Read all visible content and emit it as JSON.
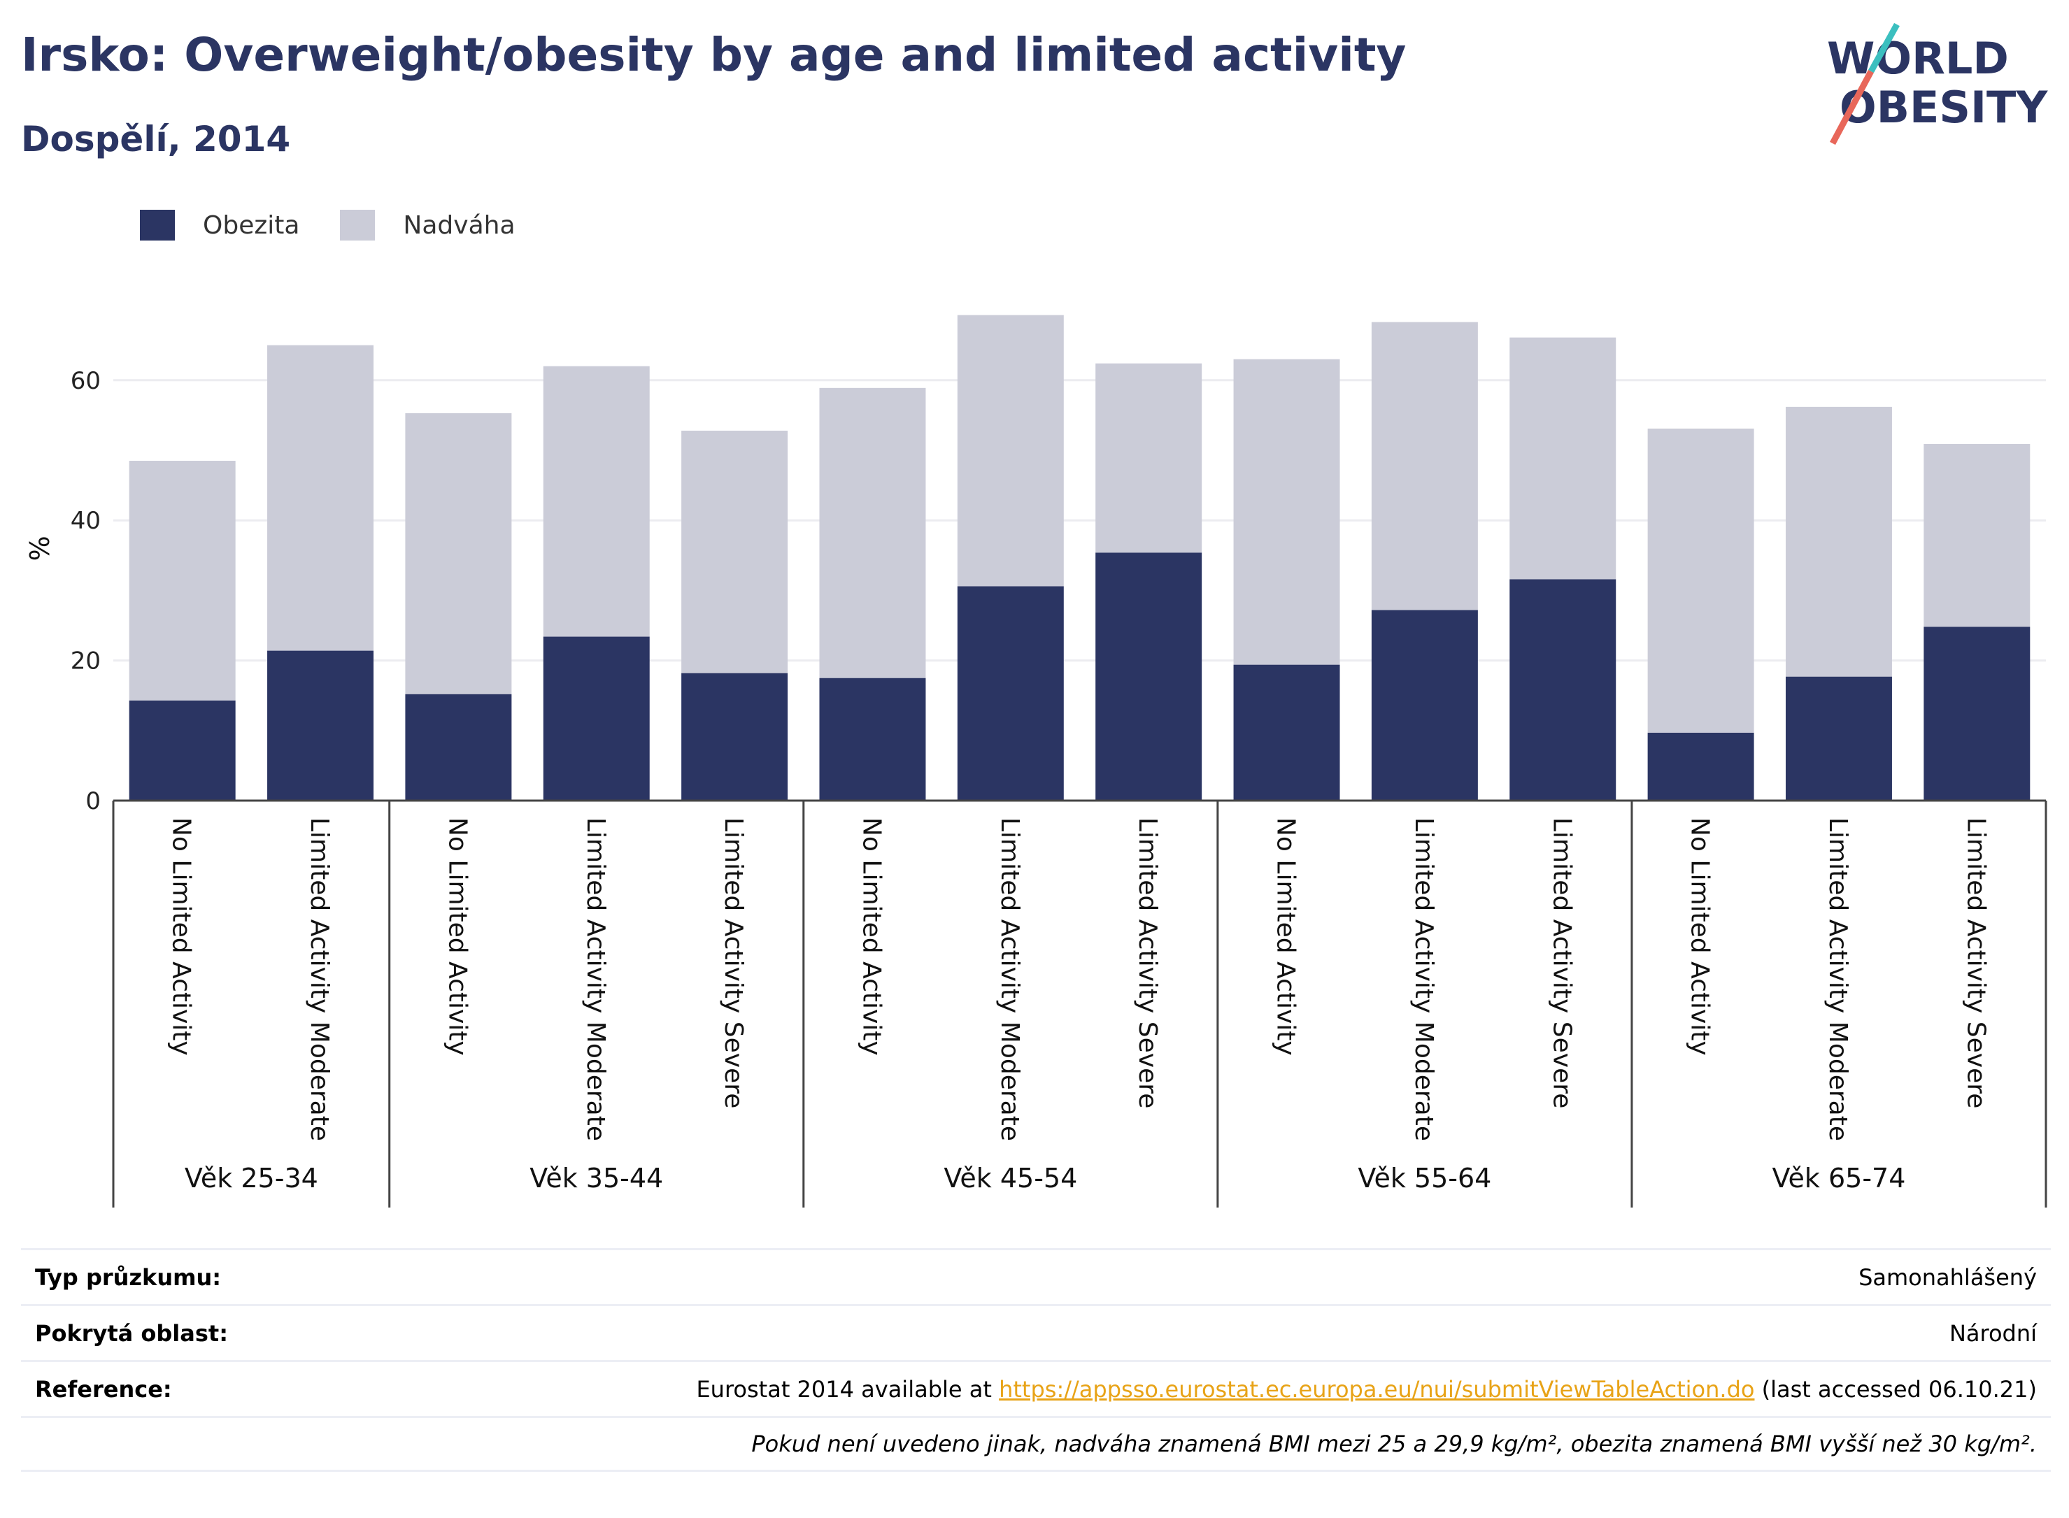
{
  "header": {
    "title": "Irsko: Overweight/obesity by age and limited activity",
    "subtitle": "Dospělí, 2014"
  },
  "logo": {
    "line1": "WORLD",
    "line2": "OBESITY"
  },
  "legend": [
    {
      "label": "Obezita",
      "color": "#2b3563"
    },
    {
      "label": "Nadváha",
      "color": "#cbccd8"
    }
  ],
  "chart_data": {
    "type": "bar",
    "stacked": true,
    "ylabel": "%",
    "ylim": [
      0,
      72
    ],
    "yticks": [
      0,
      20,
      40,
      60
    ],
    "grid": true,
    "legend_position": "top-left",
    "groups": [
      {
        "label": "Věk 25-34",
        "categories": [
          "No Limited Activity",
          "Limited Activity Moderate"
        ]
      },
      {
        "label": "Věk 35-44",
        "categories": [
          "No Limited Activity",
          "Limited Activity Moderate",
          "Limited Activity Severe"
        ]
      },
      {
        "label": "Věk 45-54",
        "categories": [
          "No Limited Activity",
          "Limited Activity Moderate",
          "Limited Activity Severe"
        ]
      },
      {
        "label": "Věk 55-64",
        "categories": [
          "No Limited Activity",
          "Limited Activity Moderate",
          "Limited Activity Severe"
        ]
      },
      {
        "label": "Věk 65-74",
        "categories": [
          "No Limited Activity",
          "Limited Activity Moderate",
          "Limited Activity Severe"
        ]
      }
    ],
    "series": [
      {
        "name": "Obezita",
        "color": "#2b3563",
        "values": [
          14.3,
          21.4,
          15.2,
          23.4,
          18.2,
          17.5,
          30.6,
          35.4,
          19.4,
          27.2,
          31.6,
          9.7,
          17.7,
          24.8
        ]
      },
      {
        "name": "Nadváha",
        "color": "#cbccd8",
        "values": [
          34.2,
          43.6,
          40.1,
          38.6,
          34.6,
          41.4,
          38.7,
          27.0,
          43.6,
          41.1,
          34.5,
          43.4,
          38.5,
          26.1
        ]
      }
    ]
  },
  "meta": {
    "survey_type_label": "Typ průzkumu:",
    "survey_type_value": "Samonahlášený",
    "coverage_label": "Pokrytá oblast:",
    "coverage_value": "Národní",
    "reference_label": "Reference:",
    "reference_prefix": "Eurostat 2014 available at ",
    "reference_link": "https://appsso.eurostat.ec.europa.eu/nui/submitViewTableAction.do",
    "reference_suffix": " (last accessed 06.10.21)",
    "note": "Pokud není uvedeno jinak, nadváha znamená BMI mezi 25 a 29,9 kg/m², obezita znamená BMI vyšší než 30 kg/m²."
  }
}
